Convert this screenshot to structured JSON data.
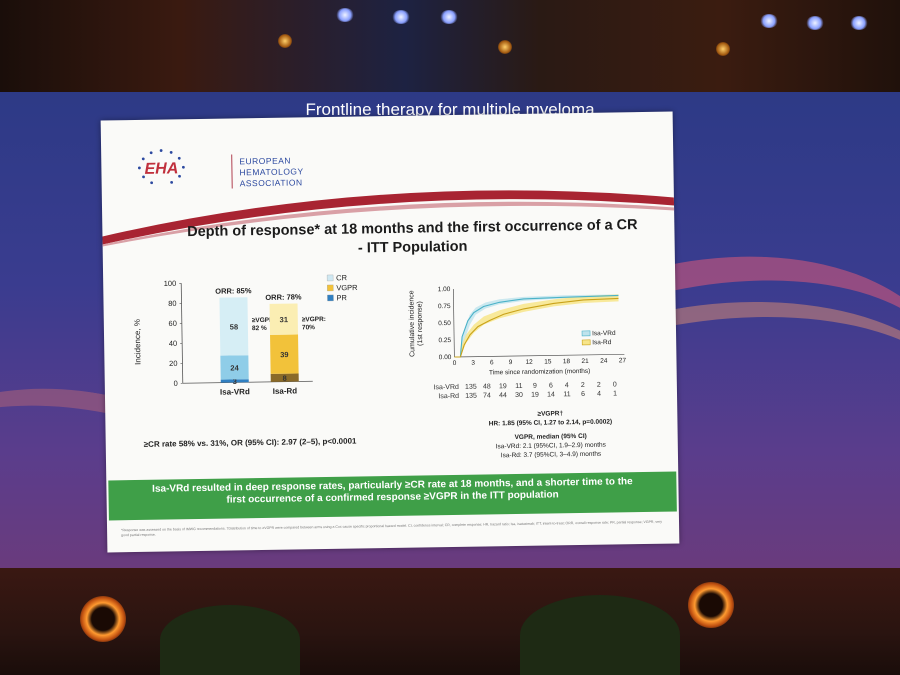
{
  "screen_title": "Frontline therapy for multiple myeloma",
  "logo": {
    "mark": "EHA",
    "name_lines": [
      "EUROPEAN",
      "HEMATOLOGY",
      "ASSOCIATION"
    ]
  },
  "slide_title_lines": [
    "Depth of response* at 18 months and the first occurrence of a CR",
    "- ITT Population"
  ],
  "bar_chart": {
    "ylabel": "Incidence, %",
    "yticks": [
      "100",
      "80",
      "60",
      "40",
      "20",
      "0"
    ],
    "legend": [
      {
        "label": "CR",
        "color": "#cfe8f2"
      },
      {
        "label": "VGPR",
        "color": "#f2c23a"
      },
      {
        "label": "PR",
        "color": "#2f7fc1"
      }
    ],
    "bars": [
      {
        "name": "Isa-VRd",
        "orr": "ORR: 85%",
        "vgpr_note": [
          "≥VGPR:",
          "82 %"
        ],
        "segments": [
          {
            "label": "3",
            "value": 3,
            "color": "#2f7fc1"
          },
          {
            "label": "24",
            "value": 24,
            "color": "#8fcde8"
          },
          {
            "label": "58",
            "value": 58,
            "color": "#d6eef5"
          }
        ]
      },
      {
        "name": "Isa-Rd",
        "orr": "ORR: 78%",
        "vgpr_note": [
          "≥VGPR:",
          "70%"
        ],
        "segments": [
          {
            "label": "8",
            "value": 8,
            "color": "#8a6a28"
          },
          {
            "label": "39",
            "value": 39,
            "color": "#f2c23a"
          },
          {
            "label": "31",
            "value": 31,
            "color": "#fbeeb3"
          }
        ]
      }
    ]
  },
  "cr_rate_note": "≥CR rate 58% vs. 31%, OR (95% CI): 2.97 (2–5), p<0.0001",
  "km_chart": {
    "ylabel_lines": [
      "Cumulative incidence",
      "(1st response)"
    ],
    "yticks": [
      "1.00",
      "0.75",
      "0.50",
      "0.25",
      "0.00"
    ],
    "xticks": [
      "0",
      "3",
      "6",
      "9",
      "12",
      "15",
      "18",
      "21",
      "24",
      "27"
    ],
    "xlabel": "Time since randomization (months)",
    "legend": [
      "Isa-VRd",
      "Isa-Rd"
    ]
  },
  "risk_table": {
    "rows": [
      {
        "label": "Isa-VRd",
        "values": [
          "135",
          "48",
          "19",
          "11",
          "9",
          "6",
          "4",
          "2",
          "2",
          "0"
        ]
      },
      {
        "label": "Isa-Rd",
        "values": [
          "135",
          "74",
          "44",
          "30",
          "19",
          "14",
          "11",
          "6",
          "4",
          "1"
        ]
      }
    ]
  },
  "stats": {
    "vgpr_head": "≥VGPR†",
    "hr": "HR: 1.85 (95% CI, 1.27 to 2.14, p=0.0002)",
    "median_head": "VGPR, median (95% CI)",
    "vrd": "Isa-VRd: 2.1 (95%CI, 1.9–2.9) months",
    "rd": "Isa-Rd: 3.7 (95%CI, 3–4.9) months"
  },
  "banner_lines": [
    "Isa-VRd resulted in deep response rates, particularly ≥CR rate at 18 months, and a shorter time to the",
    "first occurrence of a confirmed response ≥VGPR in the ITT population"
  ],
  "footnote": "*Response was assessed on the basis of IMWG recommendations. †Distribution of time to ≥VGPR were compared between arms using a Cox cause specific proportional hazard model. CI, confidence interval; CR, complete response; HR, hazard ratio; Isa, isatuximab; ITT, intent-to-treat; ORR, overall response rate; PR, partial response; VGPR, very good partial response."
}
